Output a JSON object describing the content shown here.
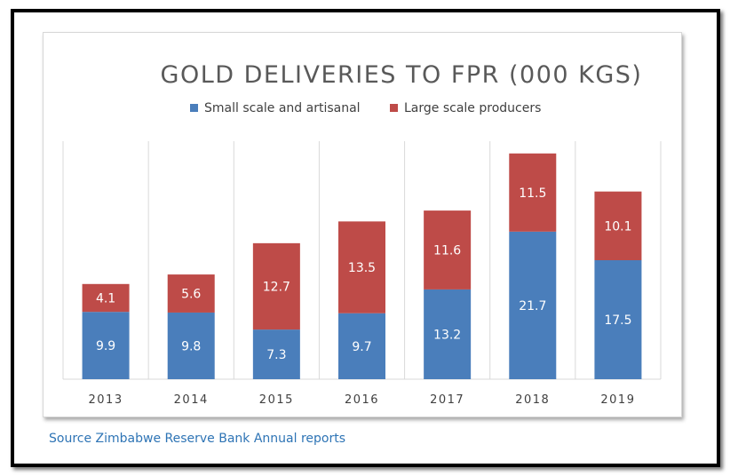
{
  "chart_data": {
    "type": "bar",
    "stacked": true,
    "title": "GOLD DELIVERIES TO FPR (000 KGS)",
    "categories": [
      "2013",
      "2014",
      "2015",
      "2016",
      "2017",
      "2018",
      "2019"
    ],
    "series": [
      {
        "name": "Small scale and artisanal",
        "color": "#4a7ebb",
        "values": [
          9.9,
          9.8,
          7.3,
          9.7,
          13.2,
          21.7,
          17.5
        ]
      },
      {
        "name": "Large scale producers",
        "color": "#be4b48",
        "values": [
          4.1,
          5.6,
          12.7,
          13.5,
          11.6,
          11.5,
          10.1
        ]
      }
    ],
    "ylim": [
      0,
      35
    ],
    "grid": "vertical",
    "legend": "top-center",
    "data_labels": true
  },
  "source_note": "Source Zimbabwe Reserve Bank Annual reports"
}
